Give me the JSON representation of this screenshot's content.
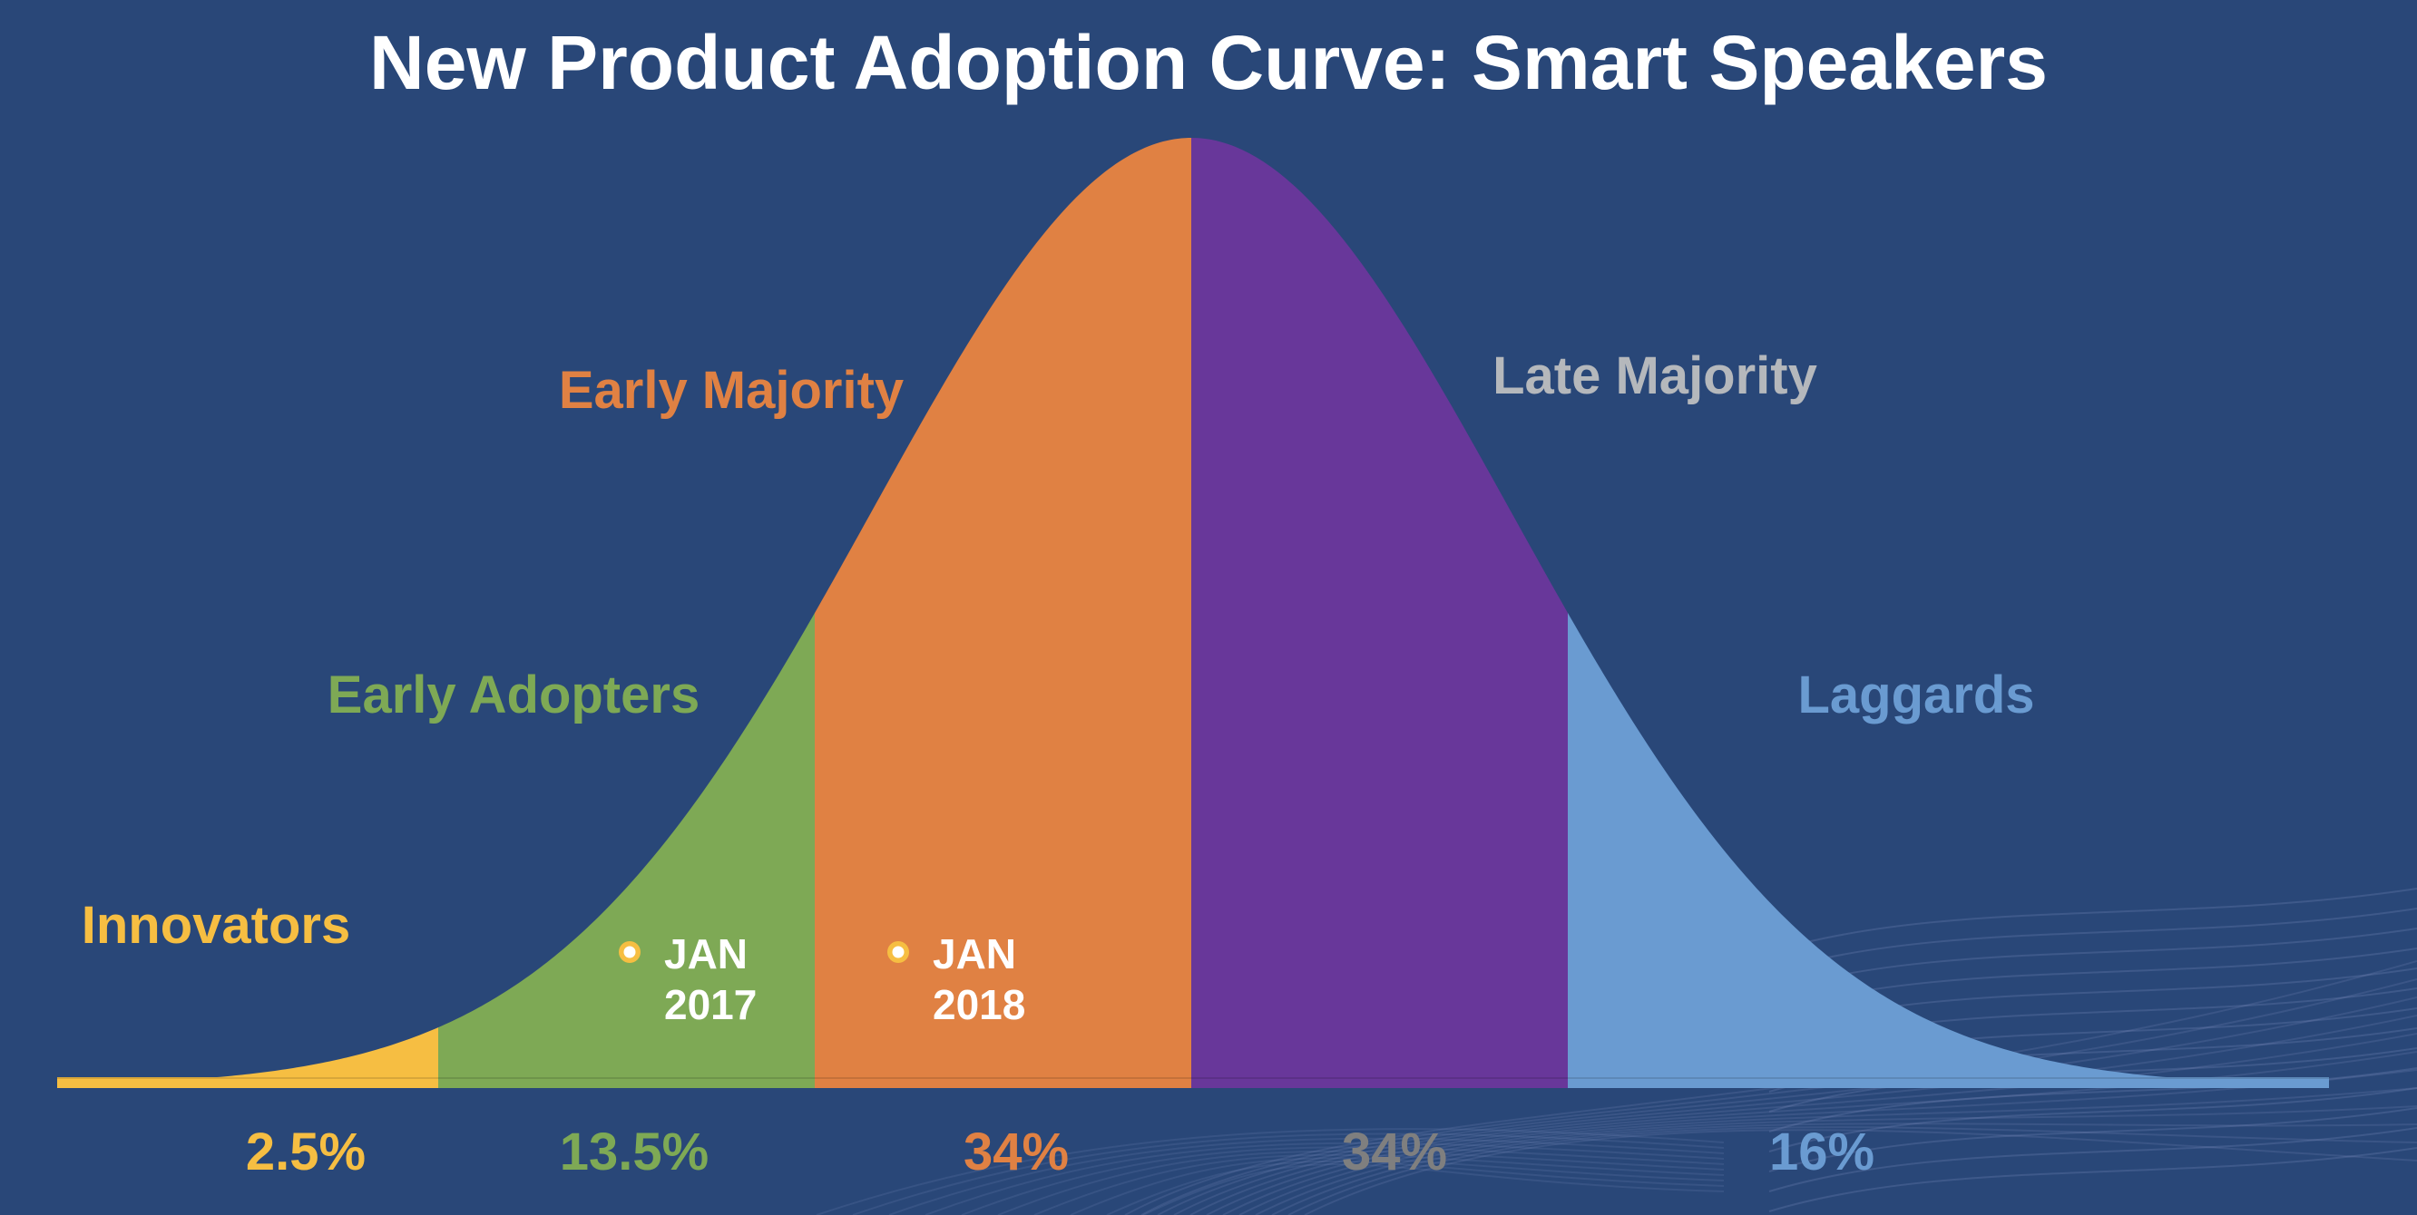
{
  "chart_data": {
    "type": "area",
    "subtype": "bell-curve",
    "title": "New Product Adoption Curve: Smart Speakers",
    "xlabel": "",
    "ylabel": "",
    "grid": false,
    "legend": "none",
    "segments": [
      {
        "name": "Innovators",
        "percent_label": "2.5%",
        "value": 2.5,
        "color": "#F6BE42",
        "label_color": "#F6BE42",
        "pct_color": "#F6BE42"
      },
      {
        "name": "Early Adopters",
        "percent_label": "13.5%",
        "value": 13.5,
        "color": "#7EA955",
        "label_color": "#7EA955",
        "pct_color": "#7EA955"
      },
      {
        "name": "Early Majority",
        "percent_label": "34%",
        "value": 34,
        "color": "#E08143",
        "label_color": "#E08143",
        "pct_color": "#E08143"
      },
      {
        "name": "Late Majority",
        "percent_label": "34%",
        "value": 34,
        "color": "#68379A",
        "label_color": "#B5B8BC",
        "pct_color": "#7F7F7F"
      },
      {
        "name": "Laggards",
        "percent_label": "16%",
        "value": 16,
        "color": "#6A9BD1",
        "label_color": "#6A9BD1",
        "pct_color": "#6A9BD1"
      }
    ],
    "boundaries_sigma": [
      -2,
      -1,
      0,
      1
    ],
    "annotations": [
      {
        "line1": "JAN",
        "line2": "2017",
        "segment": "Early Adopters",
        "position_sigma": -1.5
      },
      {
        "line1": "JAN",
        "line2": "2018",
        "segment": "Early Majority",
        "position_sigma": -0.9
      }
    ]
  },
  "colors": {
    "background": "#294778",
    "title": "#FFFFFF",
    "marker_ring": "#F6BE42",
    "marker_center": "#FFFFFF"
  }
}
